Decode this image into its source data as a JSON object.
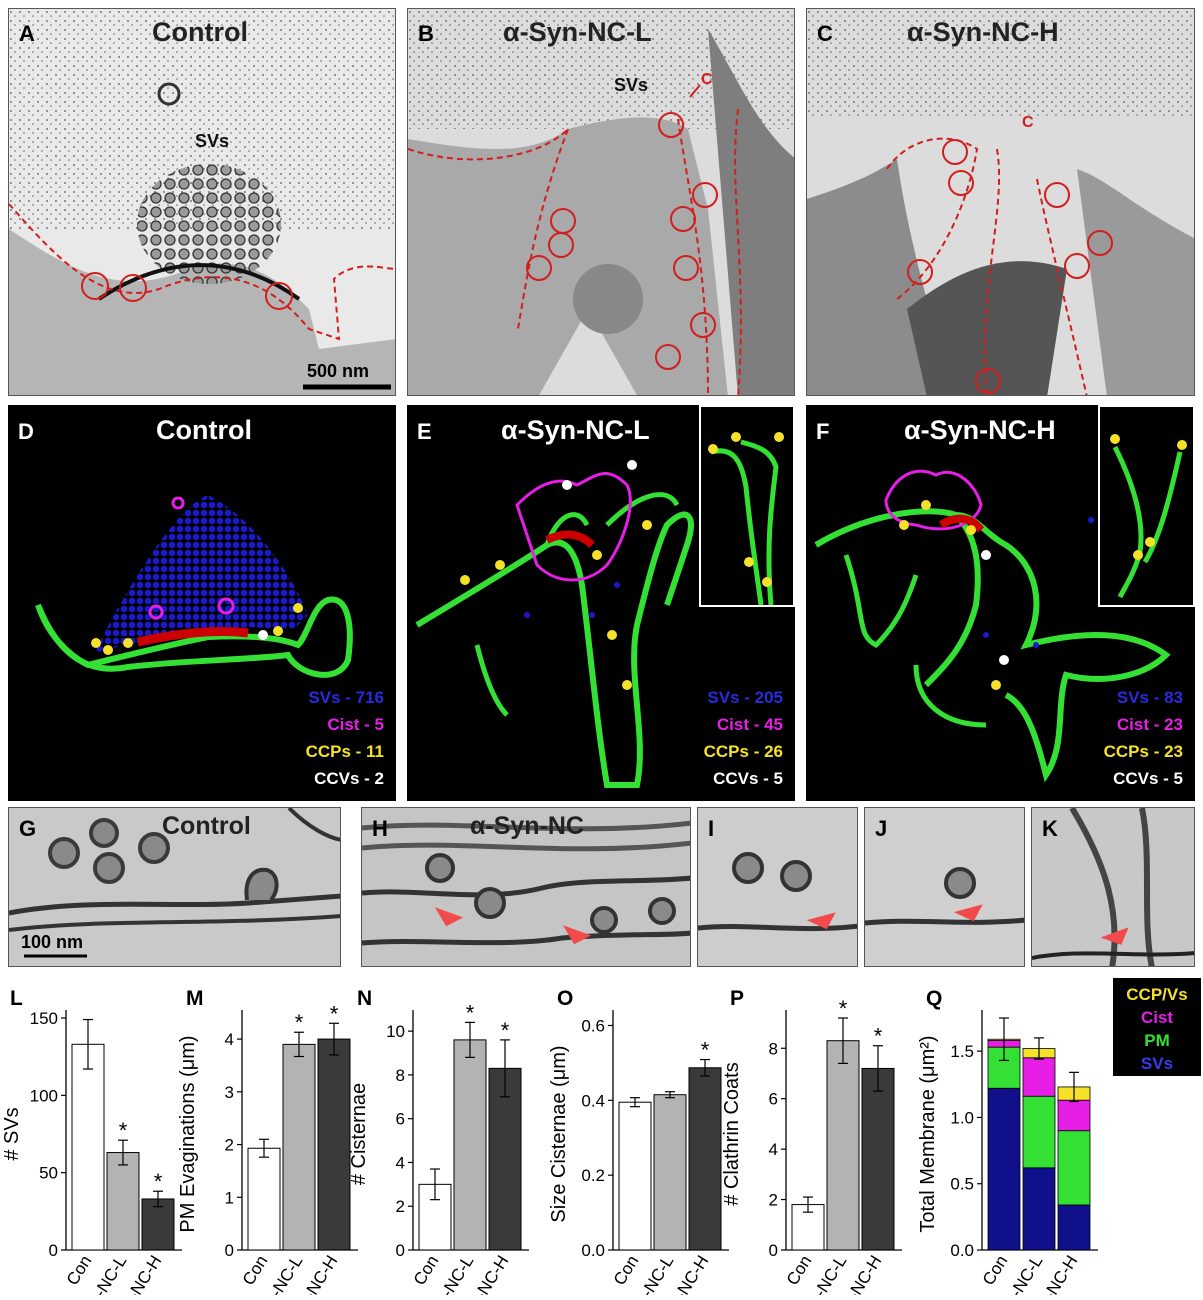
{
  "panels_em": [
    {
      "letter": "A",
      "title": "Control",
      "label": "SVs",
      "scale": "500 nm"
    },
    {
      "letter": "B",
      "title": "α-Syn-NC-L",
      "label": "SVs",
      "c_label": "C"
    },
    {
      "letter": "C",
      "title": "α-Syn-NC-H",
      "c_label": "C"
    }
  ],
  "panels_recon": [
    {
      "letter": "D",
      "title": "Control",
      "counts": [
        "SVs - 716",
        "Cist - 5",
        "CCPs - 11",
        "CCVs - 2"
      ]
    },
    {
      "letter": "E",
      "title": "α-Syn-NC-L",
      "counts": [
        "SVs - 205",
        "Cist - 45",
        "CCPs - 26",
        "CCVs - 5"
      ]
    },
    {
      "letter": "F",
      "title": "α-Syn-NC-H",
      "counts": [
        "SVs - 83",
        "Cist - 23",
        "CCPs - 23",
        "CCVs - 5"
      ]
    }
  ],
  "panels_zoom": [
    {
      "letter": "G",
      "title": "Control",
      "scale": "100 nm"
    },
    {
      "letter": "H",
      "title": "α-Syn-NC"
    },
    {
      "letter": "I"
    },
    {
      "letter": "J"
    },
    {
      "letter": "K"
    }
  ],
  "colors": {
    "svs": "#1a1acc",
    "cist": "#e61ee6",
    "ccps": "#f5e12a",
    "ccvs": "#ffffff",
    "pm": "#33e033",
    "az": "#cc0000",
    "con": "#ffffff",
    "low": "#b3b3b3",
    "high": "#3a3a3a",
    "stack_svs": "#10108a"
  },
  "chart_data": [
    {
      "letter": "L",
      "type": "bar",
      "ylabel": "# SVs",
      "categories": [
        "Con",
        "αSyn-NC-L",
        "αSyn-NC-H"
      ],
      "values": [
        133,
        63,
        33
      ],
      "errors": [
        16,
        8,
        5
      ],
      "significant": [
        false,
        true,
        true
      ],
      "ylim": [
        0,
        150
      ],
      "yticks": [
        0,
        50,
        100,
        150
      ]
    },
    {
      "letter": "M",
      "type": "bar",
      "ylabel": "PM Evaginations (μm)",
      "categories": [
        "Con",
        "αSyn-NC-L",
        "αSyn-NC-H"
      ],
      "values": [
        1.93,
        3.9,
        4.0
      ],
      "errors": [
        0.17,
        0.23,
        0.3
      ],
      "significant": [
        false,
        true,
        true
      ],
      "ylim": [
        0,
        4.4
      ],
      "yticks": [
        0,
        1,
        2,
        3,
        4
      ]
    },
    {
      "letter": "N",
      "type": "bar",
      "ylabel": "# Cisternae",
      "categories": [
        "Con",
        "αSyn-NC-L",
        "αSyn-NC-H"
      ],
      "values": [
        3.0,
        9.6,
        8.3
      ],
      "errors": [
        0.7,
        0.8,
        1.3
      ],
      "significant": [
        false,
        true,
        true
      ],
      "ylim": [
        0,
        10.6
      ],
      "yticks": [
        0,
        2,
        4,
        6,
        8,
        10
      ]
    },
    {
      "letter": "O",
      "type": "bar",
      "ylabel": "Size Cisternae (μm)",
      "categories": [
        "Con",
        "αSyn-NC-L",
        "αSyn-NC-H"
      ],
      "values": [
        0.395,
        0.415,
        0.487
      ],
      "errors": [
        0.012,
        0.008,
        0.022
      ],
      "significant": [
        false,
        false,
        true
      ],
      "ylim": [
        0,
        0.62
      ],
      "yticks": [
        "0.0",
        "0.2",
        "0.4",
        "0.6"
      ]
    },
    {
      "letter": "P",
      "type": "bar",
      "ylabel": "# Clathrin Coats",
      "categories": [
        "Con",
        "αSyn-NC-L",
        "αSyn-NC-H"
      ],
      "values": [
        1.8,
        8.3,
        7.2
      ],
      "errors": [
        0.3,
        0.9,
        0.9
      ],
      "significant": [
        false,
        true,
        true
      ],
      "ylim": [
        0,
        9.2
      ],
      "yticks": [
        0,
        2,
        4,
        6,
        8
      ]
    },
    {
      "letter": "Q",
      "type": "bar",
      "ylabel": "Total Membrane (μm²)",
      "categories": [
        "Con",
        "αSyn-NC-L",
        "αSyn-NC-H"
      ],
      "series": [
        {
          "name": "SVs",
          "values": [
            1.22,
            0.62,
            0.34
          ]
        },
        {
          "name": "PM",
          "values": [
            0.31,
            0.54,
            0.56
          ]
        },
        {
          "name": "Cist",
          "values": [
            0.05,
            0.29,
            0.23
          ]
        },
        {
          "name": "CCP/Vs",
          "values": [
            0.01,
            0.07,
            0.1
          ]
        }
      ],
      "errors": [
        0.16,
        0.08,
        0.11
      ],
      "ylim": [
        0,
        1.75
      ],
      "yticks": [
        "0.0",
        "0.5",
        "1.0",
        "1.5"
      ]
    }
  ]
}
